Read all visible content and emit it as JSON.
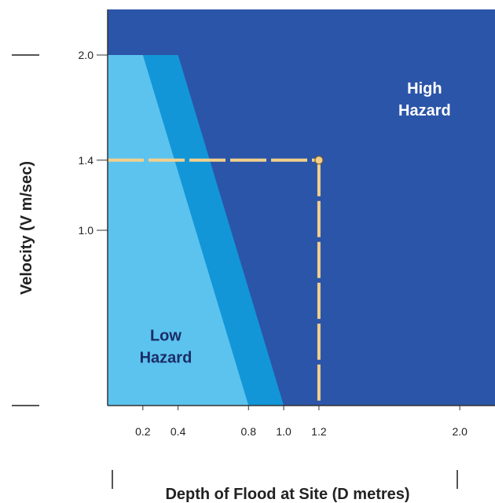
{
  "chart_data": {
    "type": "area",
    "title": "",
    "xlabel": "Depth of Flood at Site (D metres)",
    "ylabel": "Velocity (V m/sec)",
    "xlim": [
      0,
      2.2
    ],
    "ylim": [
      0,
      2.0
    ],
    "x_ticks": [
      {
        "value": 0.2,
        "label": "0.2"
      },
      {
        "value": 0.4,
        "label": "0.4"
      },
      {
        "value": 0.8,
        "label": "0.8"
      },
      {
        "value": 1.0,
        "label": "1.0"
      },
      {
        "value": 1.2,
        "label": "1.2"
      },
      {
        "value": 2.0,
        "label": "2.0"
      }
    ],
    "y_ticks": [
      {
        "value": 2.0,
        "label": "2.0"
      },
      {
        "value": 1.4,
        "label": "1.4"
      },
      {
        "value": 1.0,
        "label": "1.0"
      }
    ],
    "zones": [
      {
        "label_lines": [
          "High",
          "Hazard"
        ],
        "color": "#2b55a8",
        "polygon": [
          [
            0,
            0
          ],
          [
            2.2,
            0
          ],
          [
            2.2,
            2.0
          ],
          [
            0,
            2.0
          ]
        ]
      },
      {
        "label_lines": [],
        "color": "#1296d8",
        "polygon": [
          [
            0,
            0
          ],
          [
            1.0,
            0
          ],
          [
            0.4,
            2.0
          ],
          [
            0,
            2.0
          ]
        ]
      },
      {
        "label_lines": [
          "Low",
          "Hazard"
        ],
        "color": "#5cc3ef",
        "polygon": [
          [
            0,
            0
          ],
          [
            0.8,
            0
          ],
          [
            0.2,
            2.0
          ],
          [
            0,
            2.0
          ]
        ]
      }
    ],
    "zone_label_anchors": [
      {
        "label_lines": [
          "High",
          "Hazard"
        ],
        "x": 1.8,
        "y": 1.78,
        "color": "#ffffff"
      },
      {
        "label_lines": [
          "Low",
          "Hazard"
        ],
        "x": 0.33,
        "y": 0.37,
        "color": "#1a2d66"
      }
    ],
    "highlight_point": {
      "x": 1.2,
      "y": 1.4,
      "guide_color": "#f2d08c",
      "point_color": "#f2d08c"
    },
    "grid": false
  }
}
